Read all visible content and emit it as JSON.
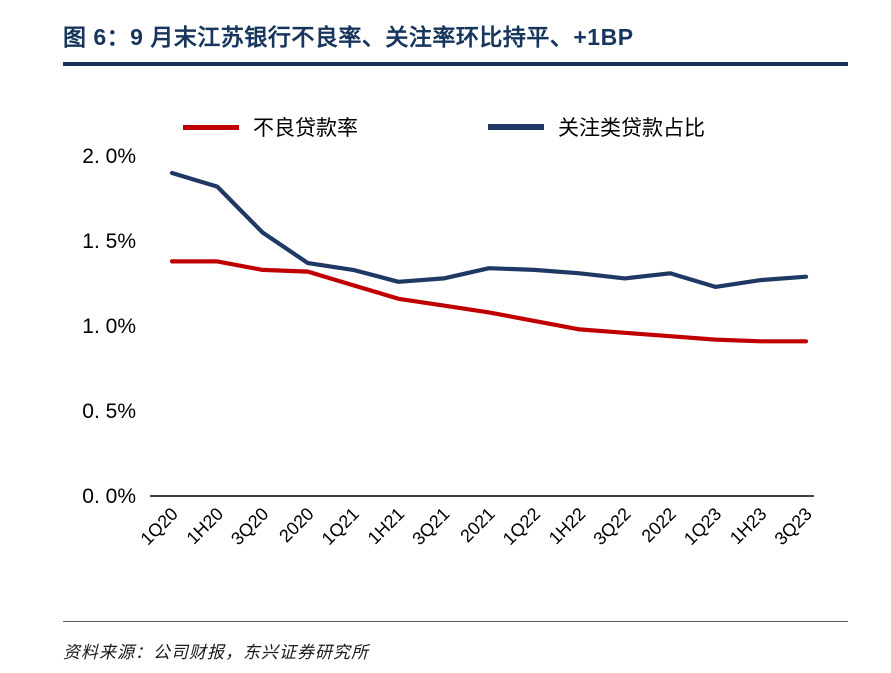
{
  "header": {
    "title": "图 6：9 月末江苏银行不良率、关注率环比持平、+1BP"
  },
  "footer": {
    "source": "资料来源：公司财报，东兴证券研究所"
  },
  "colors": {
    "accent_navy": "#17365D",
    "npl_red": "#C00000",
    "attention_navy": "#1F3864",
    "axis_black": "#000000"
  },
  "chart_data": {
    "type": "line",
    "title": "9 月末江苏银行不良率、关注率环比持平、+1BP",
    "xlabel": "",
    "ylabel": "",
    "categories": [
      "1Q20",
      "1H20",
      "3Q20",
      "2020",
      "1Q21",
      "1H21",
      "3Q21",
      "2021",
      "1Q22",
      "1H22",
      "3Q22",
      "2022",
      "1Q23",
      "1H23",
      "3Q23"
    ],
    "series": [
      {
        "id": "npl-ratio",
        "name": "不良贷款率",
        "color": "#C00000",
        "values": [
          1.38,
          1.38,
          1.33,
          1.32,
          1.24,
          1.16,
          1.12,
          1.08,
          1.03,
          0.98,
          0.96,
          0.94,
          0.92,
          0.91,
          0.91
        ]
      },
      {
        "id": "special-mention-ratio",
        "name": "关注类贷款占比",
        "color": "#1F3864",
        "values": [
          1.9,
          1.82,
          1.55,
          1.37,
          1.33,
          1.26,
          1.28,
          1.34,
          1.33,
          1.31,
          1.28,
          1.31,
          1.23,
          1.27,
          1.29
        ]
      }
    ],
    "ylim": [
      0.0,
      2.0
    ],
    "yticks": [
      0.0,
      0.5,
      1.0,
      1.5,
      2.0
    ],
    "ytick_labels": [
      "0. 0%",
      "0. 5%",
      "1. 0%",
      "1. 5%",
      "2. 0%"
    ],
    "grid": false,
    "legend_position": "top"
  }
}
